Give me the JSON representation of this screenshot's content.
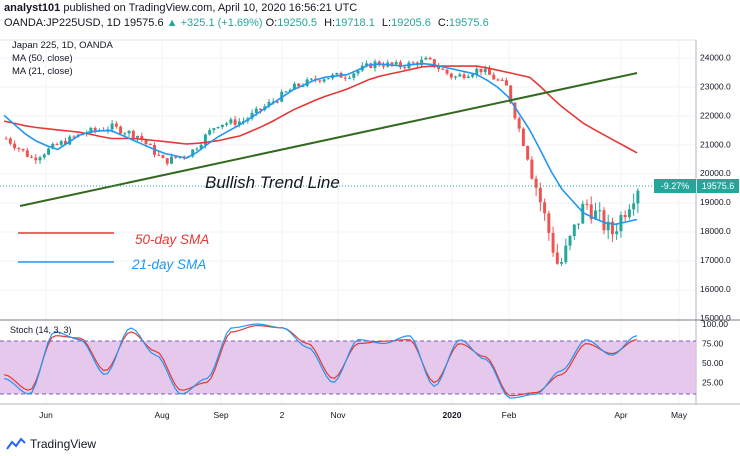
{
  "header": {
    "author": "analyst101",
    "published_text": "published on TradingView.com, April 10, 2020 16:56:21 UTC",
    "symbol": "OANDA:JP225USD, 1D",
    "last": "19575.6",
    "change_icon": "triangle-up-icon",
    "change": "+325.1 (+1.69%)",
    "o_label": "O:",
    "o": "19250.5",
    "h_label": "H:",
    "h": "19718.1",
    "l_label": "L:",
    "l": "19205.6",
    "c_label": "C:",
    "c": "19575.6"
  },
  "indicators": {
    "instrument": "Japan 225, 1D, OANDA",
    "ma50": "MA (50, close)",
    "ma21": "MA (21, close)",
    "stoch": "Stoch (14, 3, 3)"
  },
  "annotations": {
    "trend_line": "Bullish Trend Line",
    "sma50": "50-day SMA",
    "sma21": "21-day SMA"
  },
  "price_badge": {
    "pct": "-9.27%",
    "price": "19575.6"
  },
  "footer": {
    "brand": "TradingView",
    "logo_icon": "tradingview-logo-icon"
  },
  "colors": {
    "up": "#26a69a",
    "down": "#ef5350",
    "ma50": "#e53935",
    "ma21": "#2196f3",
    "trend": "#33691e",
    "stoch_k": "#2196f3",
    "stoch_d": "#e53935",
    "stoch_band": "#e1bee7",
    "badge": "#26a69a"
  },
  "chart_data": [
    {
      "type": "candlestick",
      "title": "Japan 225, 1D, OANDA",
      "x_ticks": [
        "Jun",
        "Aug",
        "Sep",
        "2",
        "Nov",
        "2020",
        "Feb",
        "Apr",
        "May"
      ],
      "y_ticks": [
        15000,
        16000,
        17000,
        18000,
        19000,
        20000,
        21000,
        22000,
        23000,
        24000
      ],
      "ylim": [
        15000,
        24600
      ],
      "grid": true,
      "last_price": 19575.6,
      "series": [
        {
          "name": "Close",
          "x": [
            "May-20",
            "Jun-01",
            "Jun-15",
            "Jul-01",
            "Jul-15",
            "Aug-01",
            "Aug-15",
            "Sep-01",
            "Sep-15",
            "Oct-01",
            "Oct-15",
            "Nov-01",
            "Nov-15",
            "Dec-01",
            "Dec-15",
            "Jan-01",
            "Jan-15",
            "Feb-01",
            "Feb-15",
            "Mar-01",
            "Mar-10",
            "Mar-19",
            "Mar-25",
            "Apr-01",
            "Apr-10"
          ],
          "values": [
            21200,
            20500,
            21000,
            21400,
            21600,
            21300,
            20400,
            20700,
            21700,
            21800,
            22400,
            23000,
            23300,
            23400,
            23800,
            23700,
            23900,
            23300,
            23600,
            23000,
            20000,
            16700,
            19000,
            17900,
            19575
          ]
        },
        {
          "name": "MA (50, close)",
          "values": [
            21800,
            21600,
            21500,
            21400,
            21200,
            21200,
            21100,
            21000,
            21100,
            21300,
            21700,
            22200,
            22600,
            22900,
            23300,
            23500,
            23700,
            23700,
            23700,
            23500,
            23300,
            22400,
            21700,
            21200,
            20700
          ]
        },
        {
          "name": "MA (21, close)",
          "values": [
            22000,
            21200,
            20800,
            21400,
            21500,
            21100,
            20700,
            20500,
            21200,
            21700,
            22300,
            22900,
            23300,
            23400,
            23800,
            23700,
            23800,
            23600,
            23400,
            22800,
            21400,
            19600,
            18600,
            18200,
            18400
          ]
        }
      ]
    },
    {
      "type": "line",
      "title": "Stoch (14, 3, 3)",
      "y_ticks": [
        25,
        50,
        75,
        100
      ],
      "ylim": [
        0,
        100
      ],
      "bands": [
        20,
        80
      ],
      "series": [
        {
          "name": "%K",
          "values": [
            30,
            10,
            90,
            80,
            35,
            95,
            60,
            10,
            30,
            95,
            100,
            95,
            70,
            25,
            80,
            75,
            85,
            20,
            80,
            55,
            5,
            10,
            40,
            80,
            60,
            85
          ]
        },
        {
          "name": "%D",
          "values": [
            35,
            15,
            85,
            82,
            40,
            90,
            65,
            15,
            25,
            90,
            98,
            95,
            75,
            30,
            75,
            78,
            80,
            25,
            75,
            58,
            8,
            12,
            35,
            75,
            62,
            80
          ]
        }
      ]
    }
  ]
}
